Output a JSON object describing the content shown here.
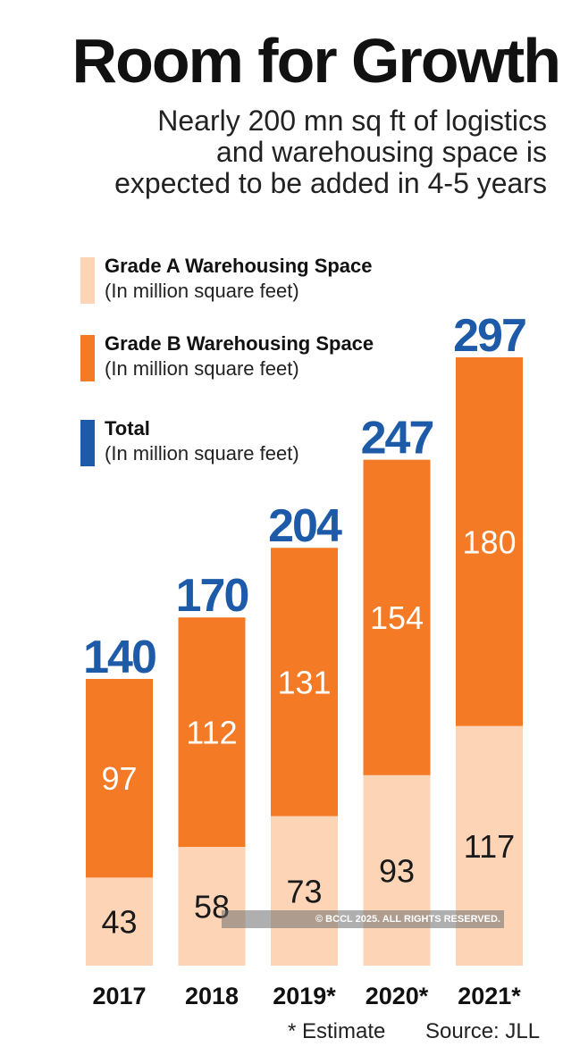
{
  "title": "Room for Growth",
  "subtitle": "Nearly 200 mn sq ft of logistics\nand warehousing space is\nexpected to be added in 4-5 years",
  "legend": [
    {
      "title": "Grade A Warehousing Space",
      "unit": "(In million square feet)",
      "color": "#FDD5B6"
    },
    {
      "title": "Grade B Warehousing Space",
      "unit": "(In million square feet)",
      "color": "#F47A26"
    },
    {
      "title": "Total",
      "unit": "(In million square feet)",
      "color": "#1D5AA8"
    }
  ],
  "footnote": "* Estimate",
  "source": "Source: JLL",
  "watermark": "© BCCL 2025. ALL RIGHTS RESERVED.",
  "chart_data": {
    "type": "bar",
    "stacked": true,
    "categories": [
      "2017",
      "2018",
      "2019*",
      "2020*",
      "2021*"
    ],
    "series": [
      {
        "name": "Grade A Warehousing Space",
        "values": [
          43,
          58,
          73,
          93,
          117
        ],
        "color": "#FDD5B6",
        "label_color": "#1a1a1a"
      },
      {
        "name": "Grade B Warehousing Space",
        "values": [
          97,
          112,
          131,
          154,
          180
        ],
        "color": "#F47A26",
        "label_color": "#ffffff"
      }
    ],
    "totals": [
      140,
      170,
      204,
      247,
      297
    ],
    "total_color": "#1D5AA8",
    "ylim": [
      0,
      297
    ]
  }
}
